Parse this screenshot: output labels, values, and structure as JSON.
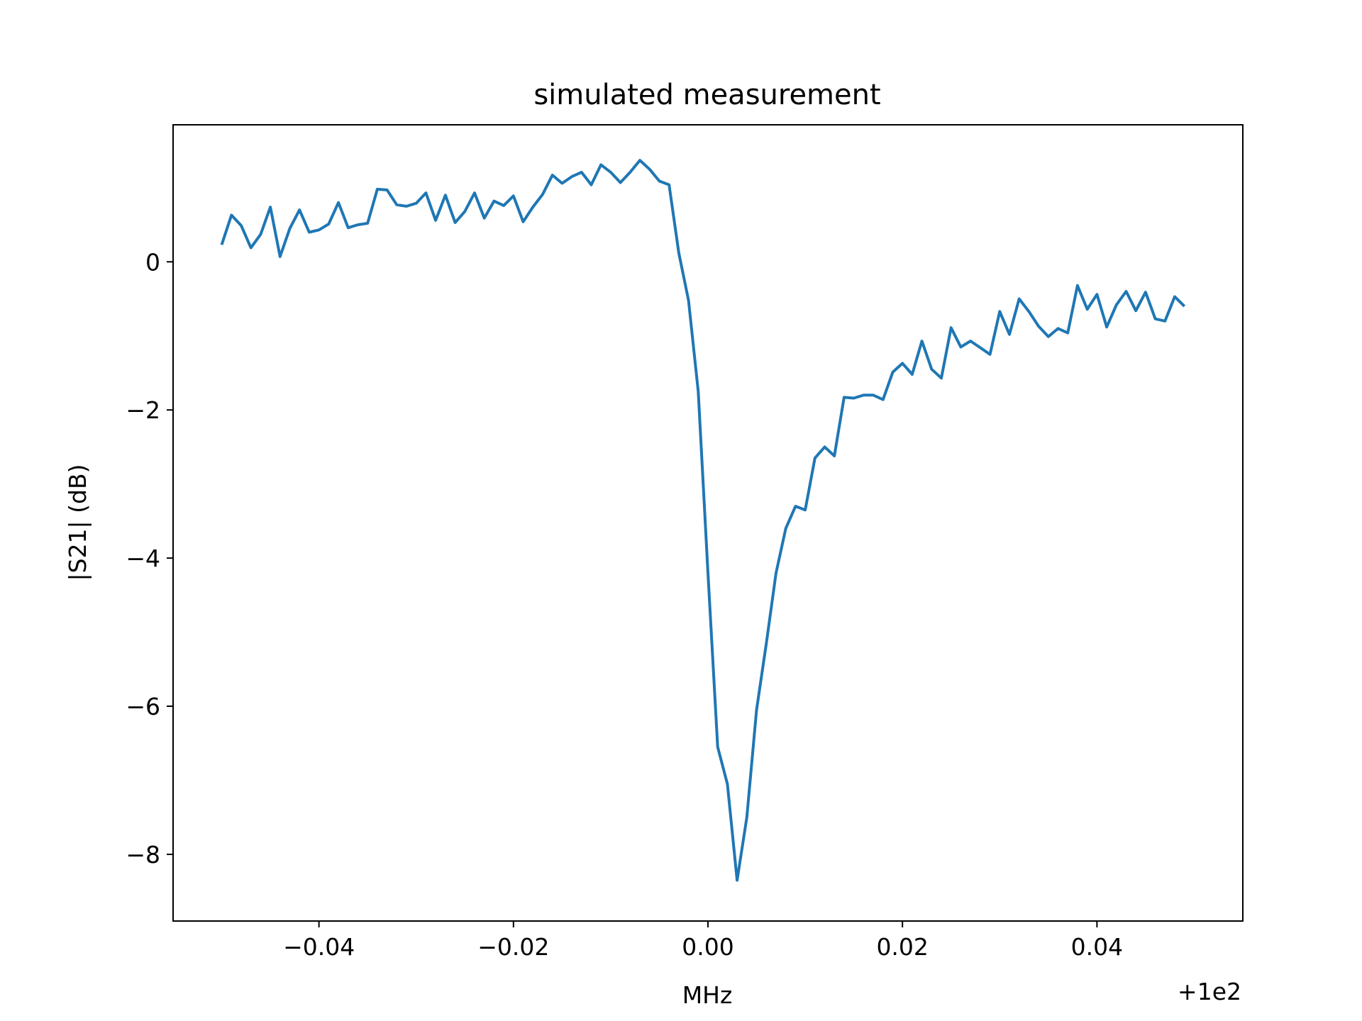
{
  "chart_data": {
    "type": "line",
    "title": "simulated measurement",
    "xlabel": "MHz",
    "ylabel": "|S21| (dB)",
    "x_offset_label": "+1e2",
    "xlim": [
      -0.055,
      0.055
    ],
    "ylim": [
      -8.9,
      1.85
    ],
    "x_ticks": [
      -0.04,
      -0.02,
      0.0,
      0.02,
      0.04
    ],
    "x_tick_labels": [
      "−0.04",
      "−0.02",
      "0.00",
      "0.02",
      "0.04"
    ],
    "y_ticks": [
      0,
      -2,
      -4,
      -6,
      -8
    ],
    "y_tick_labels": [
      "0",
      "−2",
      "−4",
      "−6",
      "−8"
    ],
    "grid": false,
    "line_color": "#1f77b4",
    "series": [
      {
        "x_start": -0.05,
        "x_step": 0.001,
        "values": [
          0.23,
          0.63,
          0.49,
          0.19,
          0.37,
          0.74,
          0.07,
          0.45,
          0.7,
          0.4,
          0.43,
          0.51,
          0.8,
          0.46,
          0.5,
          0.52,
          0.98,
          0.97,
          0.77,
          0.75,
          0.79,
          0.93,
          0.56,
          0.9,
          0.53,
          0.68,
          0.93,
          0.59,
          0.82,
          0.76,
          0.89,
          0.54,
          0.74,
          0.91,
          1.17,
          1.06,
          1.15,
          1.21,
          1.04,
          1.31,
          1.21,
          1.07,
          1.21,
          1.37,
          1.25,
          1.09,
          1.04,
          0.12,
          -0.52,
          -1.75,
          -4.2,
          -6.55,
          -7.05,
          -8.35,
          -7.5,
          -6.05,
          -5.15,
          -4.2,
          -3.6,
          -3.3,
          -3.35,
          -2.65,
          -2.5,
          -2.62,
          -1.83,
          -1.84,
          -1.8,
          -1.8,
          -1.86,
          -1.49,
          -1.37,
          -1.52,
          -1.07,
          -1.45,
          -1.57,
          -0.89,
          -1.15,
          -1.07,
          -1.16,
          -1.25,
          -0.67,
          -0.98,
          -0.5,
          -0.67,
          -0.87,
          -1.01,
          -0.9,
          -0.96,
          -0.32,
          -0.64,
          -0.44,
          -0.88,
          -0.58,
          -0.4,
          -0.66,
          -0.41,
          -0.77,
          -0.8,
          -0.47,
          -0.6
        ]
      }
    ]
  }
}
